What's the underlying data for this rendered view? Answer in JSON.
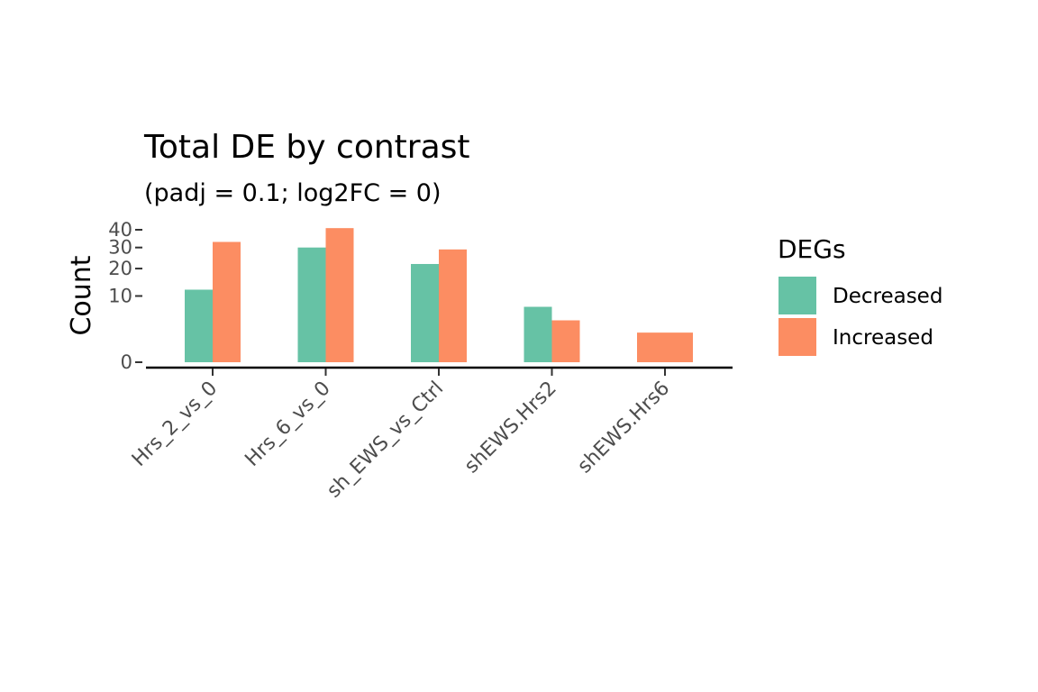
{
  "chart_data": {
    "type": "bar",
    "title": "Total DE by contrast",
    "subtitle": "(padj = 0.1; log2FC = 0)",
    "xlabel": "",
    "ylabel": "Count",
    "y_scale": "sqrt",
    "ylim": [
      0,
      40
    ],
    "yticks": [
      0,
      10,
      20,
      30,
      40
    ],
    "categories": [
      "Hrs_2_vs_0",
      "Hrs_6_vs_0",
      "sh_EWS_vs_Ctrl",
      "shEWS.Hrs2",
      "shEWS.Hrs6"
    ],
    "series": [
      {
        "name": "Decreased",
        "color": "#66C2A5",
        "values": [
          12,
          30,
          22,
          7,
          0
        ]
      },
      {
        "name": "Increased",
        "color": "#FC8D62",
        "values": [
          33,
          41,
          29,
          4,
          2
        ]
      }
    ],
    "legend": {
      "title": "DEGs",
      "position": "right"
    },
    "grid": false
  }
}
